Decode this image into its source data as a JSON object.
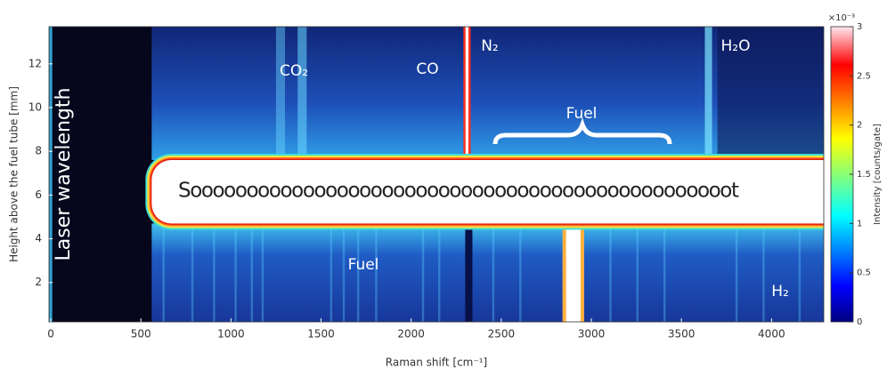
{
  "chart_data": {
    "type": "heatmap",
    "x_label": "Raman shift [cm⁻¹]",
    "y_label": "Height above the fuel tube [mm]",
    "xlim": [
      -10,
      4290
    ],
    "ylim": [
      0.2,
      13.7
    ],
    "xticks": [
      0,
      500,
      1000,
      1500,
      2000,
      2500,
      3000,
      3500,
      4000
    ],
    "yticks": [
      2,
      4,
      6,
      8,
      10,
      12
    ],
    "colorbar": {
      "label": "Intensity [counts/gate]",
      "multiplier": "×10⁻³",
      "lim": [
        0,
        3
      ],
      "ticks": [
        0,
        0.5,
        1,
        1.5,
        2,
        2.5,
        3
      ],
      "colormap": "jet"
    },
    "annotations": [
      "Laser wavelength",
      "CO₂",
      "CO",
      "N₂",
      "H₂O",
      "Fuel",
      "Soooooooooooooooooooooooooooooooooooooooooooooooot",
      "Fuel",
      "H₂"
    ]
  }
}
